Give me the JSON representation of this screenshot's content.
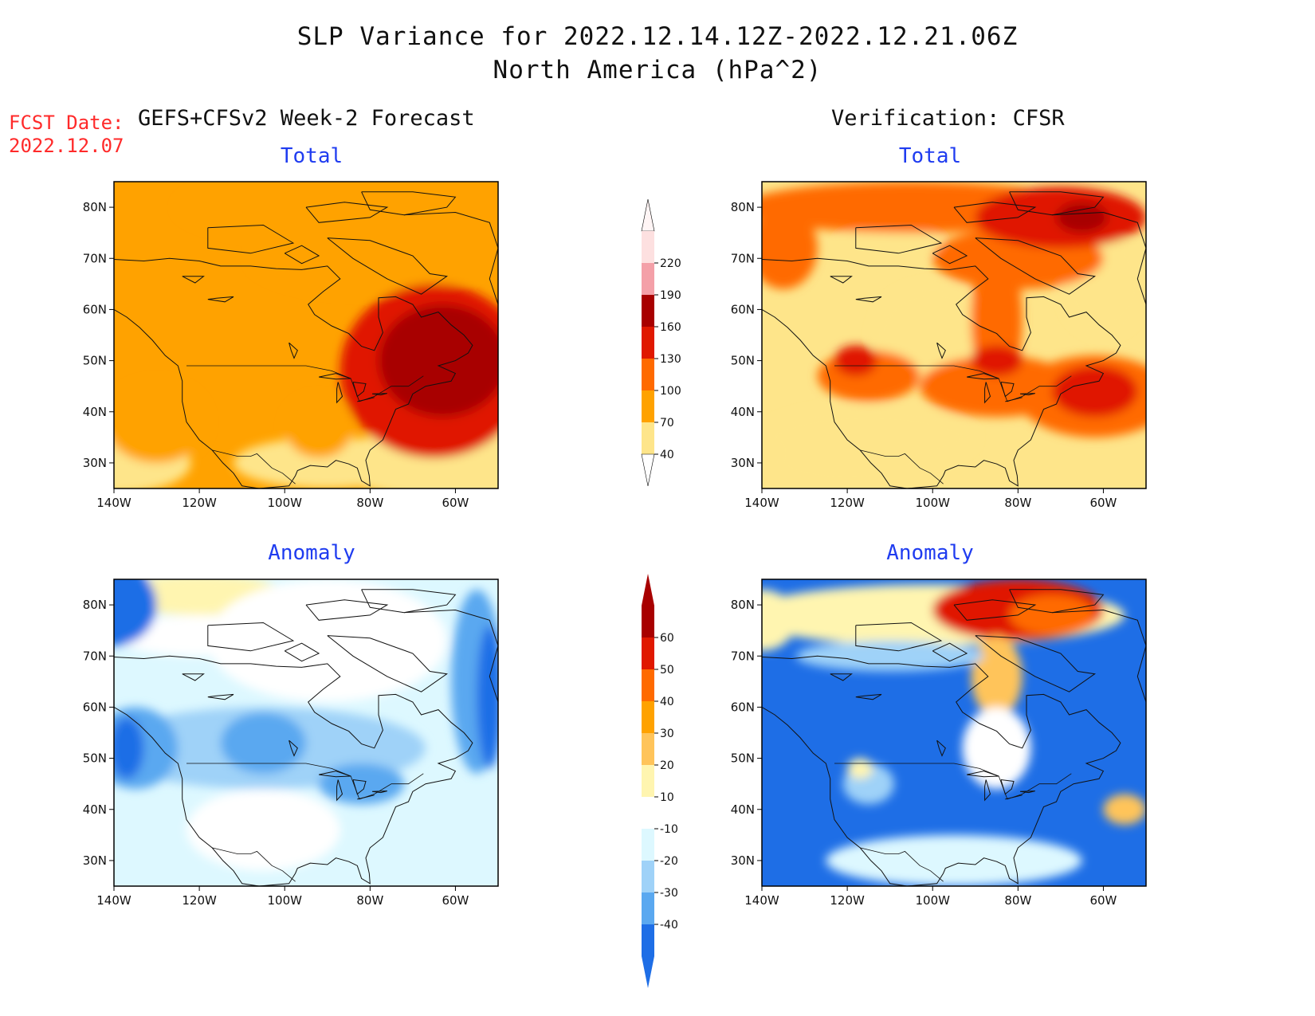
{
  "title": {
    "line1": "SLP Variance for 2022.12.14.12Z-2022.12.21.06Z",
    "line2": "North America (hPa^2)"
  },
  "fcst_date": {
    "label": "FCST Date:",
    "value": "2022.12.07"
  },
  "columns": {
    "left": "GEFS+CFSv2 Week-2 Forecast",
    "right": "Verification: CFSR"
  },
  "panel_titles": {
    "total": "Total",
    "anomaly": "Anomaly"
  },
  "axes": {
    "lon_labels": [
      "140W",
      "120W",
      "100W",
      "80W",
      "60W"
    ],
    "lat_labels": [
      "80N",
      "70N",
      "60N",
      "50N",
      "40N",
      "30N"
    ],
    "lon_values": [
      -140,
      -120,
      -100,
      -80,
      -60
    ],
    "lat_values": [
      80,
      70,
      60,
      50,
      40,
      30
    ],
    "lon_range": [
      -140,
      -50
    ],
    "lat_range": [
      25,
      85
    ]
  },
  "colorbars": {
    "total": {
      "labels": [
        "220",
        "190",
        "160",
        "130",
        "100",
        "70",
        "40"
      ],
      "colors": [
        "#fde0e0",
        "#f4a0a8",
        "#a80000",
        "#e01800",
        "#ff6a00",
        "#ffa200",
        "#fee58a"
      ]
    },
    "anomaly": {
      "labels": [
        "60",
        "50",
        "40",
        "30",
        "20",
        "10",
        "-10",
        "-20",
        "-30",
        "-40"
      ],
      "colors": [
        "#a80000",
        "#e01800",
        "#ff6a00",
        "#ffa200",
        "#ffc45a",
        "#fff5b0",
        "#ffffff",
        "#ddf8ff",
        "#9fd2f8",
        "#5aa8f0",
        "#1e6ee6"
      ]
    }
  },
  "fields": {
    "forecast_total": {
      "background": "#ffa200",
      "blobs": [
        {
          "lon": -140,
          "lat": 30,
          "rx": 18,
          "ry": 6,
          "level": 0
        },
        {
          "lon": -90,
          "lat": 30,
          "rx": 22,
          "ry": 5,
          "level": 0
        },
        {
          "lon": -60,
          "lat": 30,
          "rx": 30,
          "ry": 7,
          "level": 0
        },
        {
          "lon": -85,
          "lat": 80,
          "rx": 40,
          "ry": 7,
          "level": 1
        },
        {
          "lon": -80,
          "lat": 70,
          "rx": 28,
          "ry": 7,
          "level": 1
        },
        {
          "lon": -130,
          "lat": 38,
          "rx": 12,
          "ry": 8,
          "level": 1
        },
        {
          "lon": -92,
          "lat": 37,
          "rx": 8,
          "ry": 6,
          "level": 1
        },
        {
          "lon": -65,
          "lat": 48,
          "rx": 22,
          "ry": 17,
          "level": 3
        },
        {
          "lon": -63,
          "lat": 50,
          "rx": 15,
          "ry": 11,
          "level": 4
        },
        {
          "lon": -62,
          "lat": 52,
          "rx": 8,
          "ry": 6,
          "level": 5
        }
      ]
    },
    "verification_total": {
      "background": "#fee58a",
      "blobs": [
        {
          "lon": -100,
          "lat": 55,
          "rx": 14,
          "ry": 10,
          "level": 0
        },
        {
          "lon": -115,
          "lat": 35,
          "rx": 25,
          "ry": 6,
          "level": 0
        },
        {
          "lon": -60,
          "lat": 65,
          "rx": 10,
          "ry": 10,
          "level": 0
        },
        {
          "lon": -120,
          "lat": 30,
          "rx": 18,
          "ry": 5,
          "level": 0
        },
        {
          "lon": -110,
          "lat": 73,
          "rx": 12,
          "ry": 3,
          "level": 0
        },
        {
          "lon": -105,
          "lat": 80,
          "rx": 40,
          "ry": 5,
          "level": 2
        },
        {
          "lon": -135,
          "lat": 72,
          "rx": 8,
          "ry": 8,
          "level": 2
        },
        {
          "lon": -85,
          "lat": 58,
          "rx": 6,
          "ry": 14,
          "level": 2
        },
        {
          "lon": -85,
          "lat": 45,
          "rx": 18,
          "ry": 6,
          "level": 2
        },
        {
          "lon": -115,
          "lat": 47,
          "rx": 12,
          "ry": 5,
          "level": 2
        },
        {
          "lon": -62,
          "lat": 43,
          "rx": 18,
          "ry": 8,
          "level": 2
        },
        {
          "lon": -80,
          "lat": 70,
          "rx": 20,
          "ry": 6,
          "level": 2
        },
        {
          "lon": -70,
          "lat": 78,
          "rx": 20,
          "ry": 6,
          "level": 3
        },
        {
          "lon": -62,
          "lat": 44,
          "rx": 10,
          "ry": 5,
          "level": 3
        },
        {
          "lon": -85,
          "lat": 50,
          "rx": 6,
          "ry": 3,
          "level": 3
        },
        {
          "lon": -118,
          "lat": 50,
          "rx": 5,
          "ry": 3,
          "level": 3
        },
        {
          "lon": -65,
          "lat": 78,
          "rx": 6,
          "ry": 3,
          "level": 4
        }
      ]
    },
    "forecast_anomaly": {
      "background": "#ddf8ff",
      "blobs": [
        {
          "lon": -120,
          "lat": 82,
          "rx": 20,
          "ry": 4,
          "level": 5
        },
        {
          "lon": -90,
          "lat": 73,
          "rx": 28,
          "ry": 12,
          "level": 6
        },
        {
          "lon": -120,
          "lat": 74,
          "rx": 20,
          "ry": 4,
          "level": 6
        },
        {
          "lon": -105,
          "lat": 36,
          "rx": 18,
          "ry": 8,
          "level": 6
        },
        {
          "lon": -140,
          "lat": 80,
          "rx": 10,
          "ry": 8,
          "level": 4
        },
        {
          "lon": -105,
          "lat": 52,
          "rx": 38,
          "ry": 8,
          "level": 8
        },
        {
          "lon": -135,
          "lat": 52,
          "rx": 10,
          "ry": 8,
          "level": 9
        },
        {
          "lon": -55,
          "lat": 65,
          "rx": 6,
          "ry": 18,
          "level": 9
        },
        {
          "lon": -105,
          "lat": 53,
          "rx": 10,
          "ry": 6,
          "level": 9
        },
        {
          "lon": -82,
          "lat": 45,
          "rx": 10,
          "ry": 4,
          "level": 9
        },
        {
          "lon": -137,
          "lat": 52,
          "rx": 4,
          "ry": 6,
          "level": 10
        },
        {
          "lon": -52,
          "lat": 62,
          "rx": 3,
          "ry": 14,
          "level": 10
        }
      ]
    },
    "verification_anomaly": {
      "background": "#1e6ee6",
      "blobs": [
        {
          "lon": -100,
          "lat": 78,
          "rx": 45,
          "ry": 6,
          "level": 4
        },
        {
          "lon": -140,
          "lat": 77,
          "rx": 8,
          "ry": 6,
          "level": 4
        },
        {
          "lon": -80,
          "lat": 79,
          "rx": 20,
          "ry": 6,
          "level": 2
        },
        {
          "lon": -85,
          "lat": 66,
          "rx": 6,
          "ry": 8,
          "level": 3
        },
        {
          "lon": -72,
          "lat": 78,
          "rx": 10,
          "ry": 4,
          "level": 1
        },
        {
          "lon": -85,
          "lat": 52,
          "rx": 8,
          "ry": 8,
          "level": 6
        },
        {
          "lon": -95,
          "lat": 30,
          "rx": 30,
          "ry": 5,
          "level": 7
        },
        {
          "lon": -115,
          "lat": 45,
          "rx": 6,
          "ry": 4,
          "level": 8
        },
        {
          "lon": -117,
          "lat": 48,
          "rx": 3,
          "ry": 2,
          "level": 4
        },
        {
          "lon": -55,
          "lat": 40,
          "rx": 5,
          "ry": 3,
          "level": 3
        },
        {
          "lon": -110,
          "lat": 70,
          "rx": 22,
          "ry": 3,
          "level": 8
        }
      ]
    }
  }
}
